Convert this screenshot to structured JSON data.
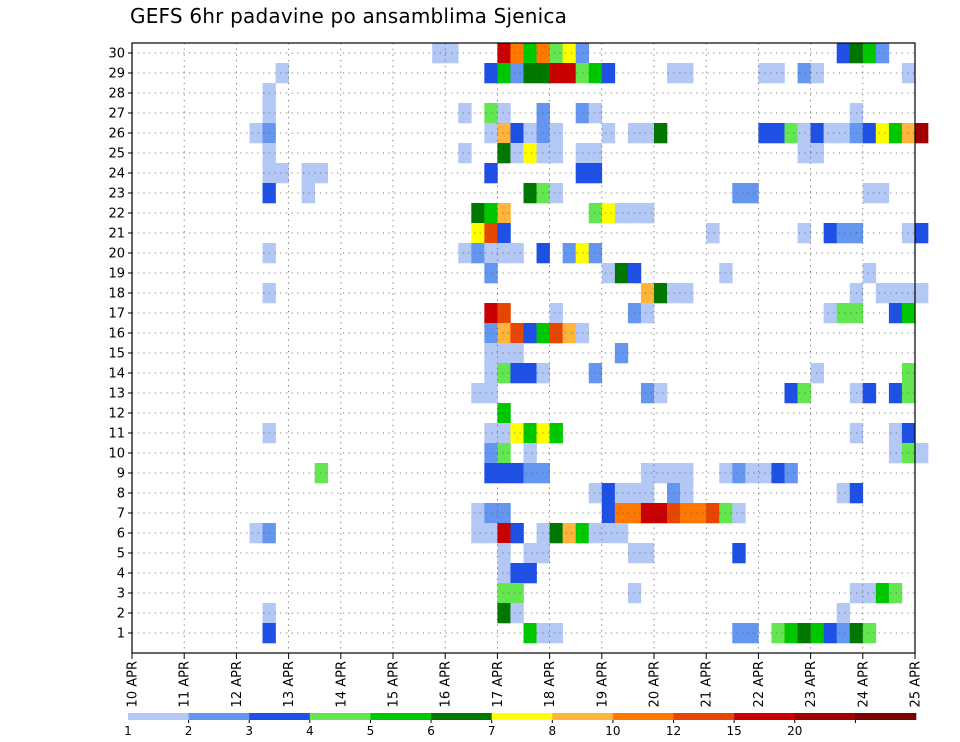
{
  "title": "GEFS 6hr padavine po ansamblima Sjenica",
  "chart_data": {
    "type": "heatmap",
    "title": "GEFS 6hr padavine po ansamblima Sjenica",
    "xlabel": "",
    "ylabel": "",
    "x_tick_labels": [
      "10 APR",
      "11 APR",
      "12 APR",
      "13 APR",
      "14 APR",
      "15 APR",
      "16 APR",
      "17 APR",
      "18 APR",
      "19 APR",
      "20 APR",
      "21 APR",
      "22 APR",
      "23 APR",
      "24 APR",
      "25 APR"
    ],
    "y_tick_labels": [
      "1",
      "2",
      "3",
      "4",
      "5",
      "6",
      "7",
      "8",
      "9",
      "10",
      "11",
      "12",
      "13",
      "14",
      "15",
      "16",
      "17",
      "18",
      "19",
      "20",
      "21",
      "22",
      "23",
      "24",
      "25",
      "26",
      "27",
      "28",
      "29",
      "30"
    ],
    "ylim": [
      0,
      30
    ],
    "time_steps_per_day": 4,
    "grid": true,
    "legend_position": "bottom",
    "color_levels": [
      {
        "label": "1",
        "color": "#b4c8f5"
      },
      {
        "label": "2",
        "color": "#6496f0"
      },
      {
        "label": "3",
        "color": "#1e50e6"
      },
      {
        "label": "4",
        "color": "#64e650"
      },
      {
        "label": "5",
        "color": "#00c800"
      },
      {
        "label": "6",
        "color": "#007800"
      },
      {
        "label": "7",
        "color": "#ffff00"
      },
      {
        "label": "8",
        "color": "#ffb43c"
      },
      {
        "label": "10",
        "color": "#ff7800"
      },
      {
        "label": "12",
        "color": "#e64600"
      },
      {
        "label": "15",
        "color": "#c80000"
      },
      {
        "label": "20",
        "color": "#a00000"
      },
      {
        "label": "",
        "color": "#780000"
      }
    ],
    "note_cells": "each cell = [member (y), 6-hour step index from 10 APR 00Z, color level index]",
    "cells": [
      [
        30,
        23,
        0
      ],
      [
        30,
        24,
        0
      ],
      [
        30,
        28,
        10
      ],
      [
        30,
        29,
        8
      ],
      [
        30,
        30,
        4
      ],
      [
        30,
        31,
        8
      ],
      [
        30,
        32,
        3
      ],
      [
        30,
        33,
        6
      ],
      [
        30,
        34,
        1
      ],
      [
        30,
        54,
        2
      ],
      [
        30,
        55,
        5
      ],
      [
        30,
        56,
        4
      ],
      [
        30,
        57,
        1
      ],
      [
        29,
        11,
        0
      ],
      [
        29,
        27,
        2
      ],
      [
        29,
        28,
        4
      ],
      [
        29,
        29,
        1
      ],
      [
        29,
        30,
        5
      ],
      [
        29,
        31,
        5
      ],
      [
        29,
        32,
        10
      ],
      [
        29,
        33,
        10
      ],
      [
        29,
        34,
        3
      ],
      [
        29,
        35,
        4
      ],
      [
        29,
        36,
        2
      ],
      [
        29,
        41,
        0
      ],
      [
        29,
        42,
        0
      ],
      [
        29,
        48,
        0
      ],
      [
        29,
        49,
        0
      ],
      [
        29,
        51,
        1
      ],
      [
        29,
        52,
        0
      ],
      [
        29,
        59,
        0
      ],
      [
        28,
        10,
        0
      ],
      [
        27,
        10,
        0
      ],
      [
        27,
        25,
        0
      ],
      [
        27,
        27,
        3
      ],
      [
        27,
        28,
        0
      ],
      [
        27,
        31,
        1
      ],
      [
        27,
        34,
        1
      ],
      [
        27,
        35,
        0
      ],
      [
        27,
        55,
        0
      ],
      [
        26,
        9,
        0
      ],
      [
        26,
        10,
        1
      ],
      [
        26,
        27,
        0
      ],
      [
        26,
        28,
        7
      ],
      [
        26,
        29,
        2
      ],
      [
        26,
        30,
        0
      ],
      [
        26,
        31,
        1
      ],
      [
        26,
        32,
        0
      ],
      [
        26,
        36,
        0
      ],
      [
        26,
        38,
        0
      ],
      [
        26,
        39,
        0
      ],
      [
        26,
        40,
        5
      ],
      [
        26,
        48,
        2
      ],
      [
        26,
        49,
        2
      ],
      [
        26,
        50,
        3
      ],
      [
        26,
        51,
        0
      ],
      [
        26,
        52,
        2
      ],
      [
        26,
        53,
        0
      ],
      [
        26,
        54,
        0
      ],
      [
        26,
        55,
        1
      ],
      [
        26,
        56,
        2
      ],
      [
        26,
        57,
        6
      ],
      [
        26,
        58,
        4
      ],
      [
        26,
        59,
        7
      ],
      [
        26,
        60,
        11
      ],
      [
        25,
        10,
        0
      ],
      [
        25,
        25,
        0
      ],
      [
        25,
        28,
        5
      ],
      [
        25,
        29,
        0
      ],
      [
        25,
        30,
        6
      ],
      [
        25,
        31,
        0
      ],
      [
        25,
        32,
        0
      ],
      [
        25,
        34,
        0
      ],
      [
        25,
        35,
        0
      ],
      [
        25,
        51,
        0
      ],
      [
        25,
        52,
        0
      ],
      [
        24,
        10,
        0
      ],
      [
        24,
        11,
        0
      ],
      [
        24,
        13,
        0
      ],
      [
        24,
        14,
        0
      ],
      [
        24,
        27,
        2
      ],
      [
        24,
        34,
        2
      ],
      [
        24,
        35,
        2
      ],
      [
        23,
        10,
        2
      ],
      [
        23,
        13,
        0
      ],
      [
        23,
        30,
        5
      ],
      [
        23,
        31,
        3
      ],
      [
        23,
        32,
        0
      ],
      [
        23,
        46,
        1
      ],
      [
        23,
        47,
        1
      ],
      [
        23,
        56,
        0
      ],
      [
        23,
        57,
        0
      ],
      [
        22,
        26,
        5
      ],
      [
        22,
        27,
        4
      ],
      [
        22,
        28,
        7
      ],
      [
        22,
        35,
        3
      ],
      [
        22,
        36,
        6
      ],
      [
        22,
        37,
        0
      ],
      [
        22,
        38,
        0
      ],
      [
        22,
        39,
        0
      ],
      [
        21,
        26,
        6
      ],
      [
        21,
        27,
        9
      ],
      [
        21,
        28,
        2
      ],
      [
        21,
        44,
        0
      ],
      [
        21,
        51,
        0
      ],
      [
        21,
        53,
        2
      ],
      [
        21,
        54,
        1
      ],
      [
        21,
        55,
        1
      ],
      [
        21,
        59,
        0
      ],
      [
        21,
        60,
        2
      ],
      [
        20,
        10,
        0
      ],
      [
        20,
        25,
        0
      ],
      [
        20,
        26,
        1
      ],
      [
        20,
        27,
        0
      ],
      [
        20,
        28,
        0
      ],
      [
        20,
        29,
        0
      ],
      [
        20,
        31,
        2
      ],
      [
        20,
        33,
        1
      ],
      [
        20,
        34,
        6
      ],
      [
        20,
        35,
        1
      ],
      [
        19,
        27,
        1
      ],
      [
        19,
        36,
        0
      ],
      [
        19,
        37,
        5
      ],
      [
        19,
        38,
        2
      ],
      [
        19,
        45,
        0
      ],
      [
        19,
        56,
        0
      ],
      [
        18,
        10,
        0
      ],
      [
        18,
        39,
        7
      ],
      [
        18,
        40,
        5
      ],
      [
        18,
        41,
        0
      ],
      [
        18,
        42,
        0
      ],
      [
        18,
        55,
        0
      ],
      [
        18,
        57,
        0
      ],
      [
        18,
        58,
        0
      ],
      [
        18,
        59,
        0
      ],
      [
        18,
        60,
        0
      ],
      [
        17,
        27,
        10
      ],
      [
        17,
        28,
        9
      ],
      [
        17,
        32,
        0
      ],
      [
        17,
        38,
        1
      ],
      [
        17,
        39,
        0
      ],
      [
        17,
        53,
        0
      ],
      [
        17,
        54,
        3
      ],
      [
        17,
        55,
        3
      ],
      [
        17,
        58,
        2
      ],
      [
        17,
        59,
        4
      ],
      [
        16,
        27,
        1
      ],
      [
        16,
        28,
        7
      ],
      [
        16,
        29,
        9
      ],
      [
        16,
        30,
        2
      ],
      [
        16,
        31,
        4
      ],
      [
        16,
        32,
        9
      ],
      [
        16,
        33,
        7
      ],
      [
        16,
        34,
        0
      ],
      [
        15,
        27,
        0
      ],
      [
        15,
        28,
        0
      ],
      [
        15,
        29,
        0
      ],
      [
        15,
        37,
        1
      ],
      [
        14,
        27,
        0
      ],
      [
        14,
        28,
        3
      ],
      [
        14,
        29,
        2
      ],
      [
        14,
        30,
        2
      ],
      [
        14,
        31,
        0
      ],
      [
        14,
        35,
        1
      ],
      [
        14,
        52,
        0
      ],
      [
        14,
        59,
        3
      ],
      [
        13,
        26,
        0
      ],
      [
        13,
        27,
        0
      ],
      [
        13,
        39,
        1
      ],
      [
        13,
        40,
        0
      ],
      [
        13,
        50,
        2
      ],
      [
        13,
        51,
        3
      ],
      [
        13,
        55,
        0
      ],
      [
        13,
        56,
        2
      ],
      [
        13,
        58,
        2
      ],
      [
        13,
        59,
        3
      ],
      [
        12,
        28,
        4
      ],
      [
        11,
        10,
        0
      ],
      [
        11,
        27,
        0
      ],
      [
        11,
        28,
        0
      ],
      [
        11,
        29,
        6
      ],
      [
        11,
        30,
        4
      ],
      [
        11,
        31,
        6
      ],
      [
        11,
        32,
        4
      ],
      [
        11,
        55,
        0
      ],
      [
        11,
        58,
        0
      ],
      [
        11,
        59,
        2
      ],
      [
        10,
        27,
        1
      ],
      [
        10,
        28,
        3
      ],
      [
        10,
        30,
        0
      ],
      [
        10,
        58,
        0
      ],
      [
        10,
        59,
        3
      ],
      [
        10,
        60,
        0
      ],
      [
        9,
        14,
        3
      ],
      [
        9,
        27,
        2
      ],
      [
        9,
        28,
        2
      ],
      [
        9,
        29,
        2
      ],
      [
        9,
        30,
        1
      ],
      [
        9,
        31,
        1
      ],
      [
        9,
        39,
        0
      ],
      [
        9,
        40,
        0
      ],
      [
        9,
        41,
        0
      ],
      [
        9,
        42,
        0
      ],
      [
        9,
        45,
        0
      ],
      [
        9,
        46,
        1
      ],
      [
        9,
        47,
        0
      ],
      [
        9,
        48,
        0
      ],
      [
        9,
        49,
        2
      ],
      [
        9,
        50,
        1
      ],
      [
        8,
        35,
        0
      ],
      [
        8,
        36,
        2
      ],
      [
        8,
        37,
        0
      ],
      [
        8,
        38,
        0
      ],
      [
        8,
        39,
        0
      ],
      [
        8,
        41,
        1
      ],
      [
        8,
        42,
        0
      ],
      [
        8,
        54,
        0
      ],
      [
        8,
        55,
        2
      ],
      [
        7,
        26,
        0
      ],
      [
        7,
        27,
        1
      ],
      [
        7,
        28,
        1
      ],
      [
        7,
        36,
        2
      ],
      [
        7,
        37,
        8
      ],
      [
        7,
        38,
        8
      ],
      [
        7,
        39,
        10
      ],
      [
        7,
        40,
        10
      ],
      [
        7,
        41,
        9
      ],
      [
        7,
        42,
        8
      ],
      [
        7,
        43,
        8
      ],
      [
        7,
        44,
        9
      ],
      [
        7,
        45,
        3
      ],
      [
        7,
        46,
        0
      ],
      [
        6,
        9,
        0
      ],
      [
        6,
        10,
        1
      ],
      [
        6,
        26,
        0
      ],
      [
        6,
        27,
        0
      ],
      [
        6,
        28,
        10
      ],
      [
        6,
        29,
        2
      ],
      [
        6,
        31,
        0
      ],
      [
        6,
        32,
        5
      ],
      [
        6,
        33,
        7
      ],
      [
        6,
        34,
        4
      ],
      [
        6,
        35,
        0
      ],
      [
        6,
        36,
        0
      ],
      [
        6,
        37,
        0
      ],
      [
        5,
        28,
        0
      ],
      [
        5,
        30,
        0
      ],
      [
        5,
        31,
        0
      ],
      [
        5,
        38,
        0
      ],
      [
        5,
        39,
        0
      ],
      [
        5,
        46,
        2
      ],
      [
        4,
        28,
        0
      ],
      [
        4,
        29,
        2
      ],
      [
        4,
        30,
        2
      ],
      [
        3,
        28,
        3
      ],
      [
        3,
        29,
        3
      ],
      [
        3,
        38,
        0
      ],
      [
        3,
        55,
        0
      ],
      [
        3,
        56,
        0
      ],
      [
        3,
        57,
        4
      ],
      [
        3,
        58,
        3
      ],
      [
        2,
        10,
        0
      ],
      [
        2,
        28,
        5
      ],
      [
        2,
        29,
        0
      ],
      [
        2,
        54,
        0
      ],
      [
        1,
        10,
        2
      ],
      [
        1,
        30,
        4
      ],
      [
        1,
        31,
        0
      ],
      [
        1,
        32,
        0
      ],
      [
        1,
        46,
        1
      ],
      [
        1,
        47,
        1
      ],
      [
        1,
        49,
        3
      ],
      [
        1,
        50,
        4
      ],
      [
        1,
        51,
        5
      ],
      [
        1,
        52,
        4
      ],
      [
        1,
        53,
        2
      ],
      [
        1,
        54,
        1
      ],
      [
        1,
        55,
        5
      ],
      [
        1,
        56,
        3
      ]
    ]
  }
}
